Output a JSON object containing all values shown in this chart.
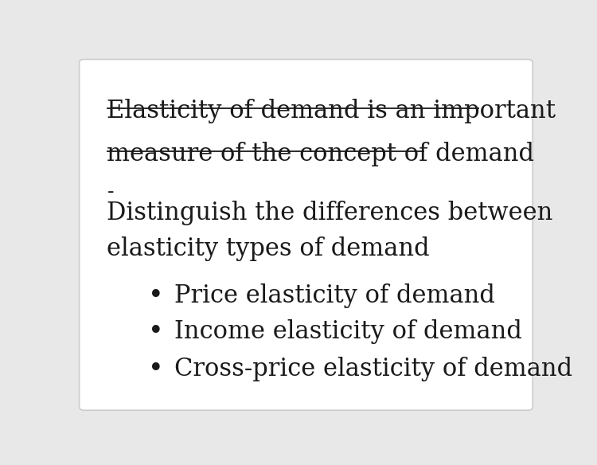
{
  "background_color": "#e8e8e8",
  "card_color": "#ffffff",
  "title_line1": "Elasticity of demand is an important",
  "title_line2": "measure of the concept of demand",
  "dash_line": "-",
  "body_line1": "Distinguish the differences between",
  "body_line2": "elasticity types of demand",
  "bullet_items": [
    "Price elasticity of demand",
    "Income elasticity of demand",
    "Cross-price elasticity of demand"
  ],
  "title_fontsize": 22,
  "body_fontsize": 22,
  "bullet_fontsize": 22,
  "dash_fontsize": 18,
  "text_color": "#1a1a1a",
  "font_family": "DejaVu Serif",
  "underline_color": "#1a1a1a",
  "underline_lw": 1.3,
  "card_edge_color": "#cccccc",
  "card_edge_lw": 1.2
}
